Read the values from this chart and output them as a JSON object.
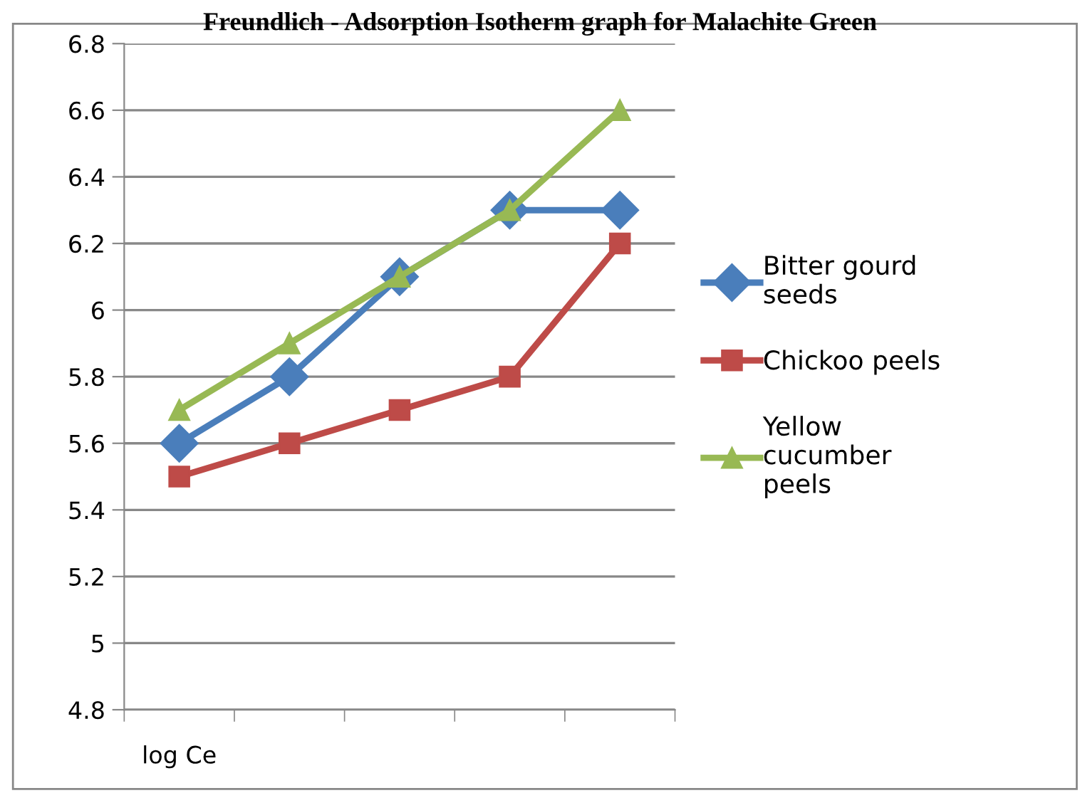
{
  "chart_data": {
    "type": "line",
    "title": "Freundlich - Adsorption Isotherm graph for Malachite Green",
    "categories": [
      "log Ce",
      null,
      null,
      null,
      null
    ],
    "series": [
      {
        "name": "Bitter gourd seeds",
        "color": "#4a7ebb",
        "marker": "diamond",
        "values": [
          5.6,
          5.8,
          6.1,
          6.3,
          6.3
        ]
      },
      {
        "name": "Chickoo peels",
        "color": "#be4b48",
        "marker": "square",
        "values": [
          5.5,
          5.6,
          5.7,
          5.8,
          6.2
        ]
      },
      {
        "name": "Yellow cucumber peels",
        "color": "#98b954",
        "marker": "triangle",
        "values": [
          5.7,
          5.9,
          6.1,
          6.3,
          6.6
        ]
      }
    ],
    "ylim": [
      4.8,
      6.8
    ],
    "yticks": [
      4.8,
      5,
      5.2,
      5.4,
      5.6,
      5.8,
      6,
      6.2,
      6.4,
      6.6,
      6.8
    ],
    "grid": "y",
    "legend": "right",
    "line_style": "solid"
  }
}
